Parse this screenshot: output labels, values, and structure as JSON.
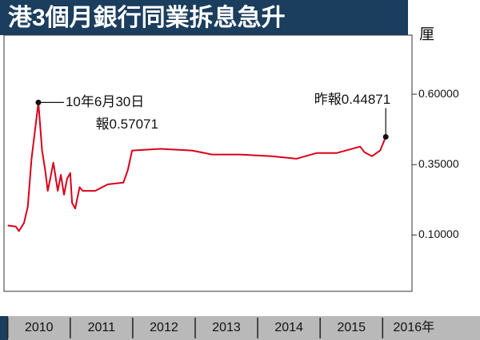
{
  "chart_data": {
    "type": "line",
    "title": "港3個月銀行同業拆息急升",
    "y_unit": "厘",
    "color": "#d9001b",
    "x": [
      2010.0,
      2010.13,
      2010.18,
      2010.26,
      2010.32,
      2010.38,
      2010.49,
      2010.55,
      2010.6,
      2010.64,
      2010.68,
      2010.73,
      2010.8,
      2010.85,
      2010.9,
      2010.95,
      2011.0,
      2011.03,
      2011.08,
      2011.15,
      2011.2,
      2011.4,
      2011.6,
      2011.85,
      2011.92,
      2011.99,
      2012.44,
      2012.95,
      2013.27,
      2013.72,
      2014.23,
      2014.62,
      2014.94,
      2015.26,
      2015.64,
      2015.71,
      2015.83,
      2015.96,
      2016.05
    ],
    "values": [
      0.134,
      0.13,
      0.114,
      0.143,
      0.2,
      0.37,
      0.57071,
      0.4,
      0.33,
      0.257,
      0.3,
      0.357,
      0.257,
      0.314,
      0.243,
      0.3,
      0.32,
      0.214,
      0.194,
      0.27,
      0.257,
      0.257,
      0.28,
      0.286,
      0.329,
      0.4,
      0.406,
      0.4,
      0.386,
      0.386,
      0.38,
      0.371,
      0.391,
      0.391,
      0.414,
      0.394,
      0.38,
      0.4,
      0.44871
    ],
    "xlim": [
      2009.94,
      2016.47
    ],
    "xticks": [
      {
        "value": 2010.5,
        "label": "2010"
      },
      {
        "value": 2011.5,
        "label": "2011"
      },
      {
        "value": 2012.5,
        "label": "2012"
      },
      {
        "value": 2013.5,
        "label": "2013"
      },
      {
        "value": 2014.5,
        "label": "2014"
      },
      {
        "value": 2015.5,
        "label": "2015"
      },
      {
        "value": 2016.5,
        "label": "2016年"
      }
    ],
    "ylim": [
      -0.1,
      0.81
    ],
    "yticks": [
      {
        "value": 0.1,
        "label": "0.10000"
      },
      {
        "value": 0.35,
        "label": "0.35000"
      },
      {
        "value": 0.6,
        "label": "0.60000"
      }
    ],
    "annotations": [
      {
        "x": 2010.49,
        "y": 0.57071,
        "lines": [
          "10年6月30日",
          "報0.57071"
        ]
      },
      {
        "x": 2016.05,
        "y": 0.44871,
        "lines": [
          "昨報0.44871"
        ]
      }
    ]
  }
}
